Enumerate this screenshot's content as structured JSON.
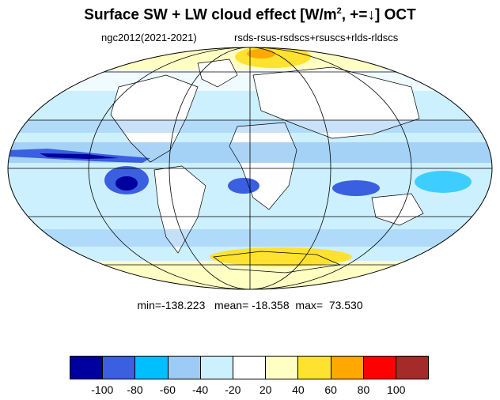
{
  "title": {
    "main": "Surface SW + LW cloud effect [W/m",
    "sup": "2",
    "after": ", +=↓]  OCT"
  },
  "subtitle": {
    "left": "ngc2012(2021-2021)",
    "right": "rsds-rsus-rsdscs+rsuscs+rlds-rldscs"
  },
  "stats": {
    "min_label": "min=",
    "min": "-138.223",
    "mean_label": "mean=",
    "mean": "-18.358",
    "max_label": "max=",
    "max": "73.530"
  },
  "colorbar": {
    "colors": [
      "#00009f",
      "#3a5fe0",
      "#00bfff",
      "#9ccbf5",
      "#cdf0ff",
      "#ffffff",
      "#ffffc4",
      "#ffe230",
      "#ffa800",
      "#ff0000",
      "#a52a2a"
    ],
    "tick_labels": [
      "-100",
      "-80",
      "-60",
      "-40",
      "-20",
      "20",
      "40",
      "60",
      "80",
      "100"
    ]
  },
  "map_colors": {
    "land_outline": "#000000",
    "ocean_fill": "#cdf0ff",
    "grid": "#000000"
  }
}
